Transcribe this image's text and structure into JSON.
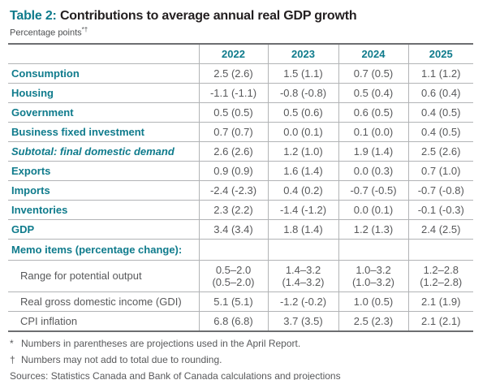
{
  "title": {
    "prefix": "Table 2:",
    "text": "Contributions to average annual real GDP growth"
  },
  "subtitle": {
    "text": "Percentage points",
    "markers": "*†"
  },
  "colors": {
    "accent_teal": "#0f7b8c",
    "value_gray": "#58595b",
    "rule_dark": "#6d6e71",
    "rule_light": "#b2b4b6"
  },
  "table": {
    "columns": [
      "2022",
      "2023",
      "2024",
      "2025"
    ],
    "rows": [
      {
        "label": "Consumption",
        "style": "main",
        "values": [
          "2.5 (2.6)",
          "1.5 (1.1)",
          "0.7 (0.5)",
          "1.1 (1.2)"
        ]
      },
      {
        "label": "Housing",
        "style": "main",
        "values": [
          "-1.1 (-1.1)",
          "-0.8 (-0.8)",
          "0.5 (0.4)",
          "0.6 (0.4)"
        ]
      },
      {
        "label": "Government",
        "style": "main",
        "values": [
          "0.5 (0.5)",
          "0.5 (0.6)",
          "0.6 (0.5)",
          "0.4 (0.5)"
        ]
      },
      {
        "label": "Business fixed investment",
        "style": "main",
        "values": [
          "0.7 (0.7)",
          "0.0 (0.1)",
          "0.1 (0.0)",
          "0.4 (0.5)"
        ]
      },
      {
        "label": "Subtotal: final domestic demand",
        "style": "subtotal",
        "values": [
          "2.6 (2.6)",
          "1.2 (1.0)",
          "1.9 (1.4)",
          "2.5 (2.6)"
        ]
      },
      {
        "label": "Exports",
        "style": "main",
        "values": [
          "0.9 (0.9)",
          "1.6 (1.4)",
          "0.0 (0.3)",
          "0.7 (1.0)"
        ]
      },
      {
        "label": "Imports",
        "style": "main",
        "values": [
          "-2.4 (-2.3)",
          "0.4 (0.2)",
          "-0.7 (-0.5)",
          "-0.7 (-0.8)"
        ]
      },
      {
        "label": "Inventories",
        "style": "main",
        "values": [
          "2.3 (2.2)",
          "-1.4 (-1.2)",
          "0.0 (0.1)",
          "-0.1 (-0.3)"
        ]
      },
      {
        "label": "GDP",
        "style": "main",
        "values": [
          "3.4 (3.4)",
          "1.8 (1.4)",
          "1.2 (1.3)",
          "2.4 (2.5)"
        ]
      },
      {
        "label": "Memo items (percentage change):",
        "style": "section",
        "values": [
          "",
          "",
          "",
          ""
        ]
      },
      {
        "label": "Range for potential output",
        "style": "memo",
        "values": [
          "0.5–2.0\n(0.5–2.0)",
          "1.4–3.2\n(1.4–3.2)",
          "1.0–3.2\n(1.0–3.2)",
          "1.2–2.8\n(1.2–2.8)"
        ]
      },
      {
        "label": "Real gross domestic income (GDI)",
        "style": "memo",
        "values": [
          "5.1 (5.1)",
          "-1.2 (-0.2)",
          "1.0 (0.5)",
          "2.1 (1.9)"
        ]
      },
      {
        "label": "CPI inflation",
        "style": "memo",
        "values": [
          "6.8 (6.8)",
          "3.7 (3.5)",
          "2.5 (2.3)",
          "2.1 (2.1)"
        ]
      }
    ]
  },
  "footnotes": [
    {
      "marker": "*",
      "text": "Numbers in parentheses are projections used in the April Report."
    },
    {
      "marker": "†",
      "text": "Numbers may not add to total due to rounding."
    }
  ],
  "sources": "Sources: Statistics Canada and Bank of Canada calculations and projections"
}
